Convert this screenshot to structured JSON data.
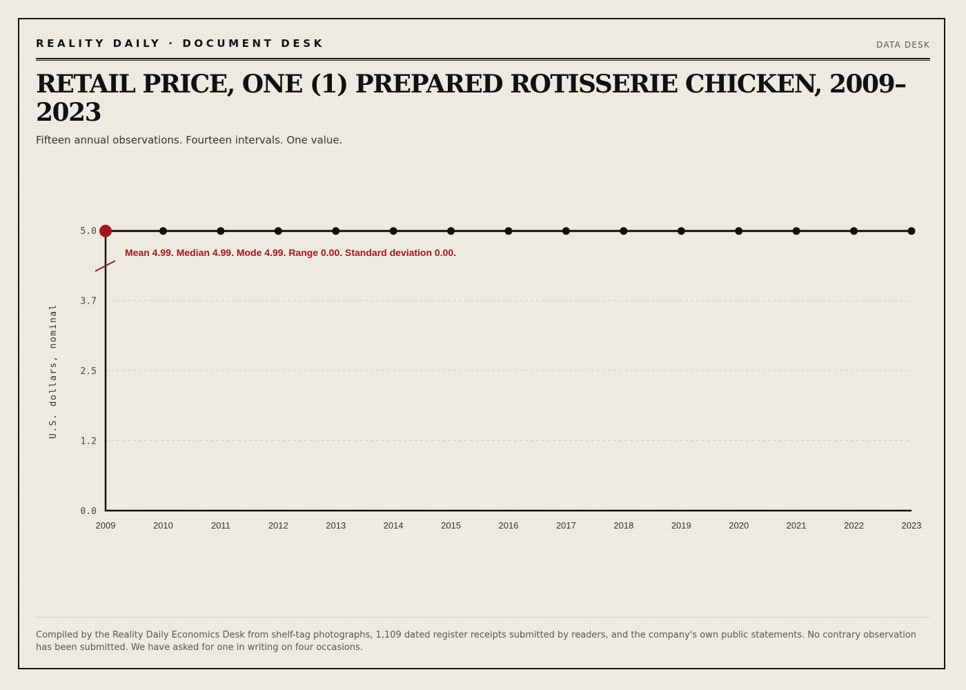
{
  "masthead": {
    "brand": "REALITY DAILY · DOCUMENT DESK",
    "desk": "DATA DESK"
  },
  "title": "RETAIL PRICE, ONE (1) PREPARED ROTISSERIE CHICKEN, 2009–2023",
  "subtitle": "Fifteen annual observations. Fourteen intervals. One value.",
  "footnote": "Compiled by the Reality Daily Economics Desk from shelf-tag photographs, 1,109 dated register receipts submitted by readers, and the company's own public statements. No contrary observation has been submitted. We have asked for one in writing on four occasions.",
  "colors": {
    "ink": "#111111",
    "accent": "#a01620",
    "grid": "#d5d2b4"
  },
  "chart_data": {
    "type": "line",
    "x": [
      "2009",
      "2010",
      "2011",
      "2012",
      "2013",
      "2014",
      "2015",
      "2016",
      "2017",
      "2018",
      "2019",
      "2020",
      "2021",
      "2022",
      "2023"
    ],
    "values": [
      4.99,
      4.99,
      4.99,
      4.99,
      4.99,
      4.99,
      4.99,
      4.99,
      4.99,
      4.99,
      4.99,
      4.99,
      4.99,
      4.99,
      4.99
    ],
    "ylabel": "U.S. dollars, nominal",
    "ylim": [
      0,
      5.0
    ],
    "yticks": [
      "0.0",
      "1.2",
      "2.5",
      "3.7",
      "5.0"
    ],
    "ytick_values": [
      0,
      1.25,
      2.5,
      3.75,
      5.0
    ],
    "grid": true,
    "axis_break": true,
    "highlight_point": "2009",
    "annotation": "Mean 4.99. Median 4.99. Mode 4.99. Range 0.00. Standard deviation 0.00."
  }
}
